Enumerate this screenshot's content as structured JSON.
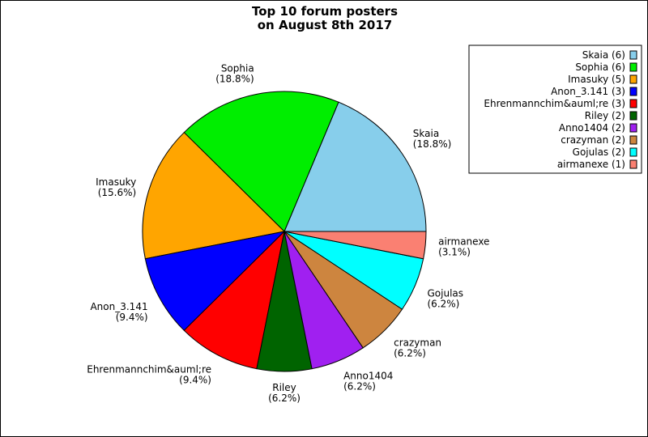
{
  "chart_data": {
    "type": "pie",
    "title_lines": [
      "Top 10 forum posters",
      "on August 8th 2017"
    ],
    "legend_position": "top-right",
    "slices": [
      {
        "label": "Skaia",
        "value": 6,
        "percent": "(18.8%)",
        "legend": "Skaia (6)",
        "color": "#87ceeb"
      },
      {
        "label": "Sophia",
        "value": 6,
        "percent": "(18.8%)",
        "legend": "Sophia (6)",
        "color": "#00ee00"
      },
      {
        "label": "Imasuky",
        "value": 5,
        "percent": "(15.6%)",
        "legend": "Imasuky (5)",
        "color": "#ffa500"
      },
      {
        "label": "Anon_3.141",
        "value": 3,
        "percent": "(9.4%)",
        "legend": "Anon_3.141 (3)",
        "color": "#0000ff"
      },
      {
        "label": "Ehrenmannchim&auml;re",
        "value": 3,
        "percent": "(9.4%)",
        "legend": "Ehrenmannchim&auml;re (3)",
        "color": "#ff0000"
      },
      {
        "label": "Riley",
        "value": 2,
        "percent": "(6.2%)",
        "legend": "Riley (2)",
        "color": "#006400"
      },
      {
        "label": "Anno1404",
        "value": 2,
        "percent": "(6.2%)",
        "legend": "Anno1404 (2)",
        "color": "#a020f0"
      },
      {
        "label": "crazyman",
        "value": 2,
        "percent": "(6.2%)",
        "legend": "crazyman (2)",
        "color": "#cd853f"
      },
      {
        "label": "Gojulas",
        "value": 2,
        "percent": "(6.2%)",
        "legend": "Gojulas (2)",
        "color": "#00ffff"
      },
      {
        "label": "airmanexe",
        "value": 1,
        "percent": "(3.1%)",
        "legend": "airmanexe (1)",
        "color": "#fa8072"
      }
    ]
  }
}
